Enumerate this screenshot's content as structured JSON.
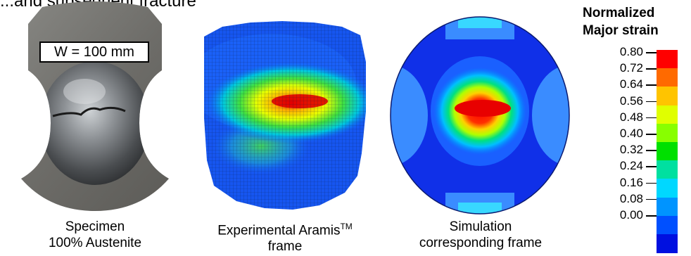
{
  "header_fragment": "...and subsequent fracture",
  "specimen": {
    "width_label": "W = 100 mm",
    "caption_line1": "Specimen",
    "caption_line2": "100% Austenite"
  },
  "experimental": {
    "caption_line1_main": "Experimental Aramis",
    "caption_line1_sup": "TM",
    "caption_line2": "frame"
  },
  "simulation": {
    "caption_line1": "Simulation",
    "caption_line2": "corresponding frame"
  },
  "colorbar": {
    "title_line1": "Normalized",
    "title_line2": "Major strain",
    "ticks": [
      "0.80",
      "0.72",
      "0.64",
      "0.56",
      "0.48",
      "0.40",
      "0.32",
      "0.24",
      "0.16",
      "0.08",
      "0.00"
    ],
    "colors": [
      "#ff0000",
      "#ff6a00",
      "#ffc400",
      "#e0ff00",
      "#88ff00",
      "#00e000",
      "#00e0a0",
      "#00d8ff",
      "#0094ff",
      "#0050ff",
      "#0010e0"
    ]
  }
}
